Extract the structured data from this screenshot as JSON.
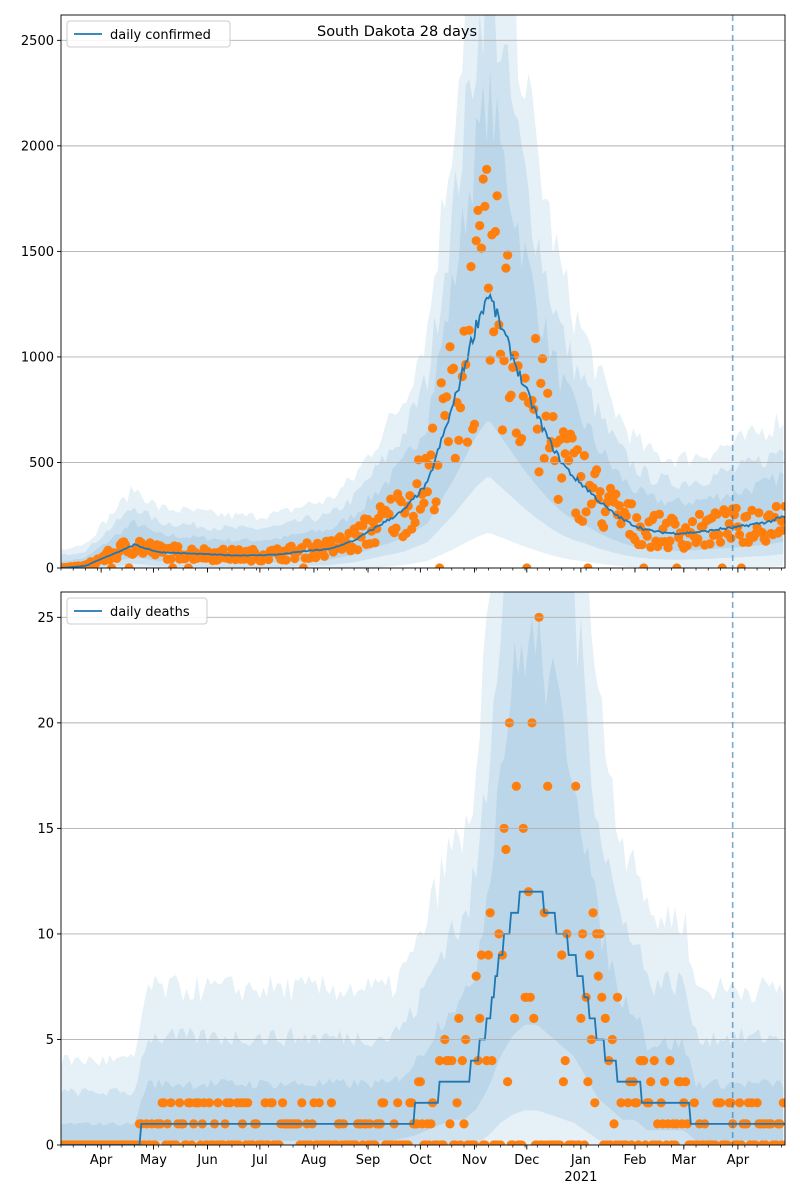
{
  "colors": {
    "line": "#1f77b4",
    "dots": "#ff7f0e",
    "band": "#1f77b4",
    "grid": "#b0b0b0",
    "vline": "#1f77b4"
  },
  "chart_data": [
    {
      "type": "line",
      "title": "South Dakota 28 days",
      "legend": "daily confirmed",
      "legend_position": "top-left",
      "ylim": [
        0,
        2620
      ],
      "yticks": [
        0,
        500,
        1000,
        1500,
        2000,
        2500
      ],
      "grid": "horizontal",
      "forecast_start": "2021-03-29",
      "series": [
        {
          "name": "daily confirmed",
          "points": [
            [
              "2020-03-09",
              0
            ],
            [
              "2020-03-23",
              10
            ],
            [
              "2020-04-06",
              60
            ],
            [
              "2020-04-20",
              110
            ],
            [
              "2020-05-04",
              75
            ],
            [
              "2020-05-18",
              70
            ],
            [
              "2020-06-01",
              65
            ],
            [
              "2020-06-15",
              60
            ],
            [
              "2020-06-29",
              60
            ],
            [
              "2020-07-13",
              65
            ],
            [
              "2020-07-27",
              80
            ],
            [
              "2020-08-10",
              90
            ],
            [
              "2020-08-24",
              130
            ],
            [
              "2020-09-07",
              200
            ],
            [
              "2020-09-21",
              270
            ],
            [
              "2020-10-05",
              400
            ],
            [
              "2020-10-19",
              750
            ],
            [
              "2020-10-26",
              950
            ],
            [
              "2020-11-02",
              1150
            ],
            [
              "2020-11-09",
              1300
            ],
            [
              "2020-11-16",
              1150
            ],
            [
              "2020-11-23",
              1000
            ],
            [
              "2020-11-30",
              850
            ],
            [
              "2020-12-07",
              720
            ],
            [
              "2020-12-14",
              600
            ],
            [
              "2020-12-21",
              500
            ],
            [
              "2020-12-28",
              430
            ],
            [
              "2021-01-04",
              380
            ],
            [
              "2021-01-11",
              320
            ],
            [
              "2021-01-18",
              270
            ],
            [
              "2021-01-25",
              230
            ],
            [
              "2021-02-01",
              200
            ],
            [
              "2021-02-08",
              180
            ],
            [
              "2021-02-15",
              170
            ],
            [
              "2021-02-22",
              165
            ],
            [
              "2021-03-01",
              165
            ],
            [
              "2021-03-08",
              170
            ],
            [
              "2021-03-15",
              175
            ],
            [
              "2021-03-22",
              185
            ],
            [
              "2021-03-29",
              190
            ],
            [
              "2021-04-05",
              200
            ],
            [
              "2021-04-12",
              210
            ],
            [
              "2021-04-19",
              220
            ],
            [
              "2021-04-26",
              240
            ]
          ]
        }
      ]
    },
    {
      "type": "line",
      "legend": "daily deaths",
      "legend_position": "top-left",
      "ylim": [
        0,
        26.2
      ],
      "yticks": [
        0,
        5,
        10,
        15,
        20,
        25
      ],
      "grid": "horizontal",
      "forecast_start": "2021-03-29",
      "series": [
        {
          "name": "daily deaths",
          "points": [
            [
              "2020-03-09",
              0
            ],
            [
              "2020-04-20",
              0
            ],
            [
              "2020-04-27",
              1
            ],
            [
              "2020-06-01",
              1
            ],
            [
              "2020-07-06",
              1
            ],
            [
              "2020-07-27",
              1
            ],
            [
              "2020-08-24",
              1
            ],
            [
              "2020-09-14",
              1
            ],
            [
              "2020-09-28",
              1.5
            ],
            [
              "2020-10-05",
              2
            ],
            [
              "2020-10-19",
              3
            ],
            [
              "2020-10-26",
              3
            ],
            [
              "2020-11-02",
              4
            ],
            [
              "2020-11-09",
              6
            ],
            [
              "2020-11-16",
              9
            ],
            [
              "2020-11-23",
              11
            ],
            [
              "2020-11-30",
              12
            ],
            [
              "2020-12-07",
              12
            ],
            [
              "2020-12-14",
              11
            ],
            [
              "2020-12-21",
              10
            ],
            [
              "2020-12-28",
              9
            ],
            [
              "2021-01-04",
              7
            ],
            [
              "2021-01-11",
              5
            ],
            [
              "2021-01-18",
              4
            ],
            [
              "2021-01-25",
              3
            ],
            [
              "2021-02-01",
              3
            ],
            [
              "2021-02-08",
              2
            ],
            [
              "2021-02-22",
              2
            ],
            [
              "2021-03-01",
              2
            ],
            [
              "2021-03-08",
              1
            ],
            [
              "2021-03-22",
              1
            ],
            [
              "2021-03-29",
              1
            ],
            [
              "2021-04-12",
              1
            ],
            [
              "2021-04-26",
              1
            ]
          ]
        }
      ]
    }
  ],
  "x_axis": {
    "ticks": [
      {
        "label": "Apr",
        "date": "2020-04-01"
      },
      {
        "label": "May",
        "date": "2020-05-01"
      },
      {
        "label": "Jun",
        "date": "2020-06-01"
      },
      {
        "label": "Jul",
        "date": "2020-07-01"
      },
      {
        "label": "Aug",
        "date": "2020-08-01"
      },
      {
        "label": "Sep",
        "date": "2020-09-01"
      },
      {
        "label": "Oct",
        "date": "2020-10-01"
      },
      {
        "label": "Nov",
        "date": "2020-11-01"
      },
      {
        "label": "Dec",
        "date": "2020-12-01"
      },
      {
        "label": "Jan",
        "date": "2021-01-01"
      },
      {
        "label": "Feb",
        "date": "2021-02-01"
      },
      {
        "label": "Mar",
        "date": "2021-03-01"
      },
      {
        "label": "Apr",
        "date": "2021-04-01"
      }
    ],
    "year_label": "2021",
    "range": [
      "2020-03-09",
      "2021-04-28"
    ]
  }
}
